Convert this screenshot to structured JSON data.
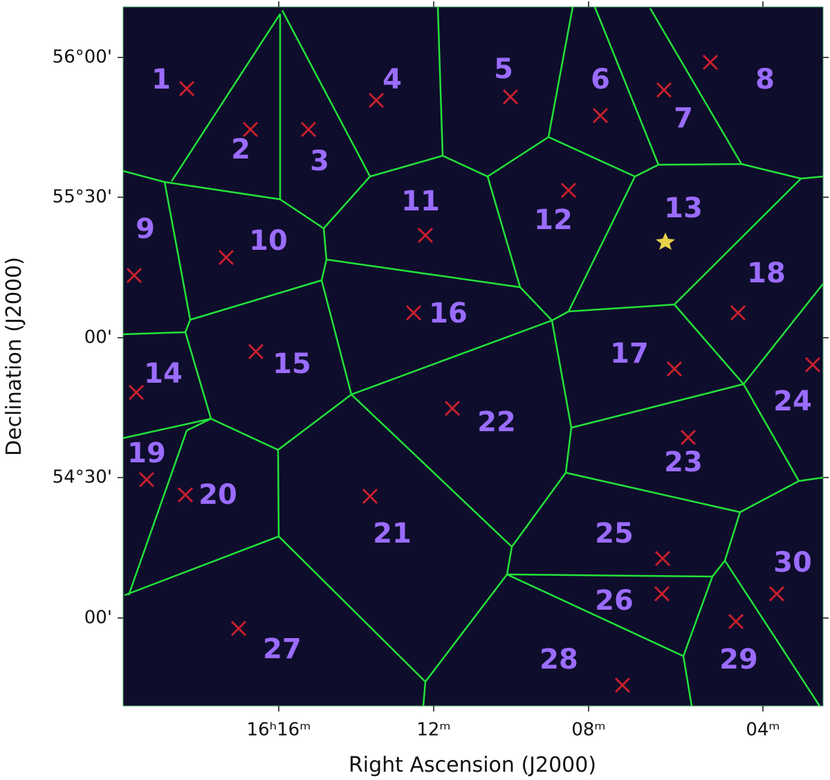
{
  "axes": {
    "x_label": "Right Ascension (J2000)",
    "y_label": "Declination (J2000)",
    "x_ticks": [
      "16ʰ16ᵐ",
      "12ᵐ",
      "08ᵐ",
      "04ᵐ"
    ],
    "y_ticks": [
      "56°00'",
      "55°30'",
      "00'",
      "54°30'",
      "00'"
    ]
  },
  "facets": [
    {
      "label": "1"
    },
    {
      "label": "2"
    },
    {
      "label": "3"
    },
    {
      "label": "4"
    },
    {
      "label": "5"
    },
    {
      "label": "6"
    },
    {
      "label": "7"
    },
    {
      "label": "8"
    },
    {
      "label": "9"
    },
    {
      "label": "10"
    },
    {
      "label": "11"
    },
    {
      "label": "12"
    },
    {
      "label": "13"
    },
    {
      "label": "14"
    },
    {
      "label": "15"
    },
    {
      "label": "16"
    },
    {
      "label": "17"
    },
    {
      "label": "18"
    },
    {
      "label": "19"
    },
    {
      "label": "20"
    },
    {
      "label": "21"
    },
    {
      "label": "22"
    },
    {
      "label": "23"
    },
    {
      "label": "24"
    },
    {
      "label": "25"
    },
    {
      "label": "26"
    },
    {
      "label": "27"
    },
    {
      "label": "28"
    },
    {
      "label": "29"
    },
    {
      "label": "30"
    }
  ]
}
